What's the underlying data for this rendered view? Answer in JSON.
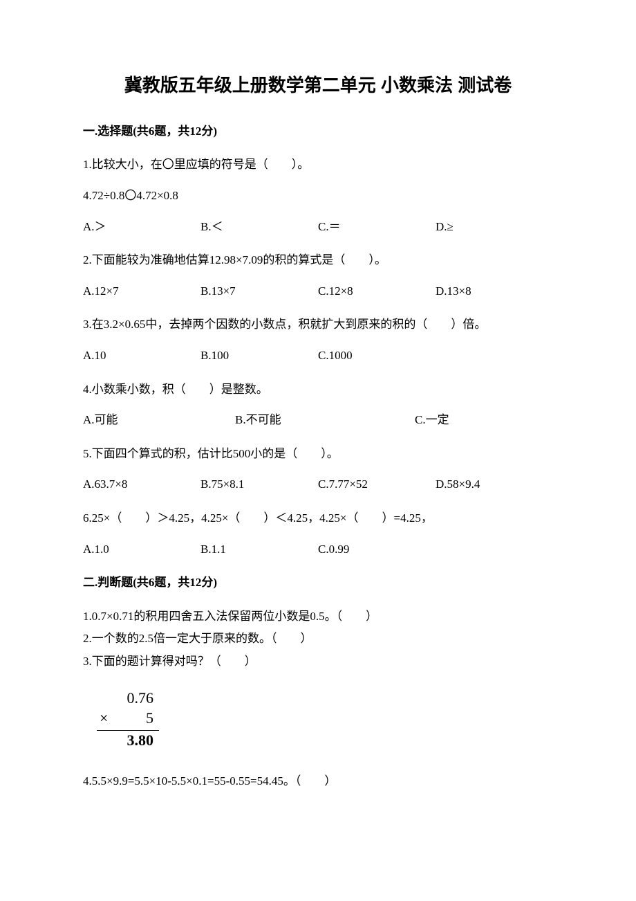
{
  "title": "冀教版五年级上册数学第二单元 小数乘法 测试卷",
  "section1": {
    "header": "一.选择题(共6题，共12分)",
    "q1": {
      "text": "1.比较大小，在〇里应填的符号是（　　）。",
      "sub": "4.72÷0.8〇4.72×0.8",
      "optA": "A.＞",
      "optB": "B.＜",
      "optC": "C.＝",
      "optD": "D.≥"
    },
    "q2": {
      "text": "2.下面能较为准确地估算12.98×7.09的积的算式是（　　）。",
      "optA": "A.12×7",
      "optB": "B.13×7",
      "optC": "C.12×8",
      "optD": "D.13×8"
    },
    "q3": {
      "text": "3.在3.2×0.65中，去掉两个因数的小数点，积就扩大到原来的积的（　　）倍。",
      "optA": "A.10",
      "optB": "B.100",
      "optC": "C.1000"
    },
    "q4": {
      "text": "4.小数乘小数，积（　　）是整数。",
      "optA": "A.可能",
      "optB": "B.不可能",
      "optC": "C.一定"
    },
    "q5": {
      "text": "5.下面四个算式的积，估计比500小的是（　　）。",
      "optA": "A.63.7×8",
      "optB": "B.75×8.1",
      "optC": "C.7.77×52",
      "optD": "D.58×9.4"
    },
    "q6": {
      "text": "6.25×（　　）＞4.25，4.25×（　　）＜4.25，4.25×（　　）=4.25，",
      "optA": "A.1.0",
      "optB": "B.1.1",
      "optC": "C.0.99"
    }
  },
  "section2": {
    "header": "二.判断题(共6题，共12分)",
    "q1": "1.0.7×0.71的积用四舍五入法保留两位小数是0.5。（　　）",
    "q2": "2.一个数的2.5倍一定大于原来的数。（　　）",
    "q3": "3.下面的题计算得对吗？（　　）",
    "calc": {
      "line1": "0.76",
      "times": "×",
      "line2": "5",
      "line3": "3.80"
    },
    "q4": "4.5.5×9.9=5.5×10-5.5×0.1=55-0.55=54.45。（　　）"
  }
}
